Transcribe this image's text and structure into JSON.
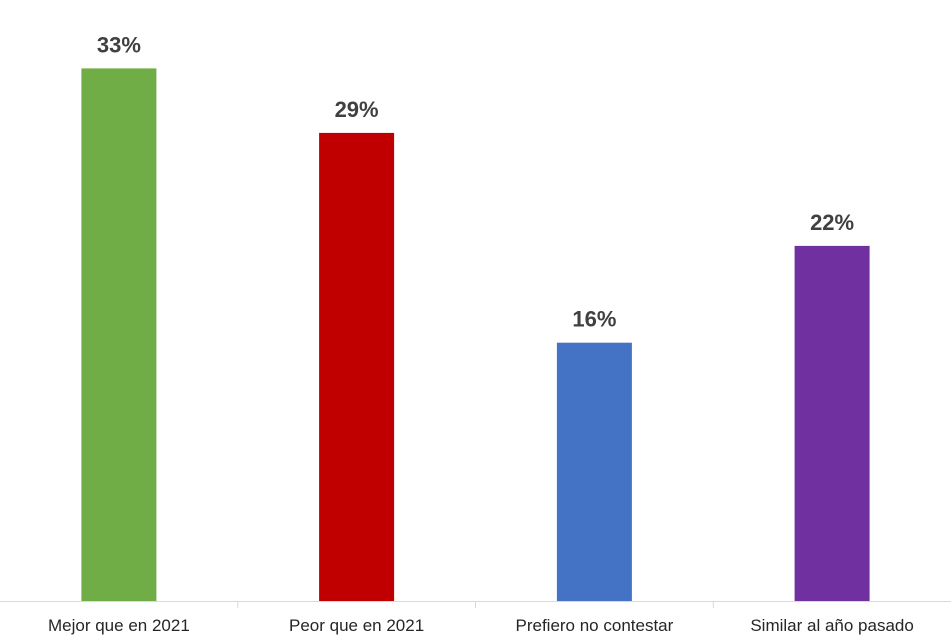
{
  "chart_data": {
    "type": "bar",
    "categories": [
      "Mejor que en 2021",
      "Peor que en 2021",
      "Prefiero no contestar",
      "Similar al año pasado"
    ],
    "values": [
      33,
      29,
      16,
      22
    ],
    "value_labels": [
      "33%",
      "29%",
      "16%",
      "22%"
    ],
    "colors": [
      "#70ad47",
      "#c00000",
      "#4472c4",
      "#7030a0"
    ],
    "title": "",
    "xlabel": "",
    "ylabel": "",
    "ylim": [
      0,
      35.5
    ],
    "grid": false,
    "legend": "none"
  }
}
